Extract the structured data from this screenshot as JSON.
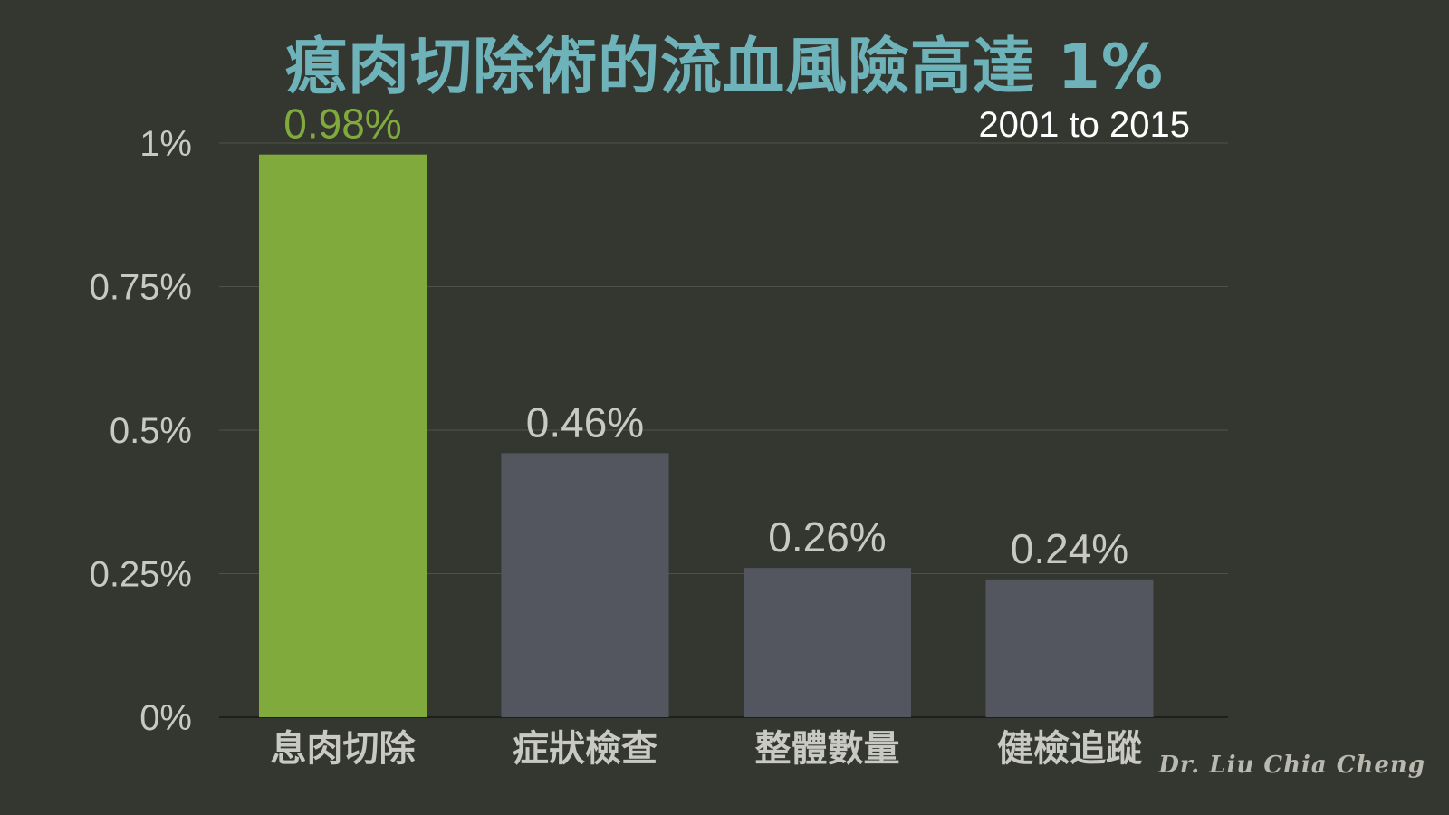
{
  "title": "瘜肉切除術的流血風險高達 1%",
  "subtitle": "2001 to 2015",
  "signature": "Dr. Liu Chia Cheng",
  "colors": {
    "background": "#343630",
    "title": "#6fb3ba",
    "highlight": "#80ab3c",
    "bar": "#53565e",
    "axis_text": "#c9c9c4",
    "grid": "#4f514b"
  },
  "chart_data": {
    "type": "bar",
    "title": "瘜肉切除術的流血風險高達 1%",
    "categories": [
      "息肉切除",
      "症狀檢查",
      "整體數量",
      "健檢追蹤"
    ],
    "values": [
      0.98,
      0.46,
      0.26,
      0.24
    ],
    "value_labels": [
      "0.98%",
      "0.46%",
      "0.26%",
      "0.24%"
    ],
    "highlight_index": 0,
    "ylim": [
      0,
      1
    ],
    "yticks": [
      0,
      0.25,
      0.5,
      0.75,
      1
    ],
    "ytick_labels": [
      "0%",
      "0.25%",
      "0.5%",
      "0.75%",
      "1%"
    ],
    "grid": true
  }
}
